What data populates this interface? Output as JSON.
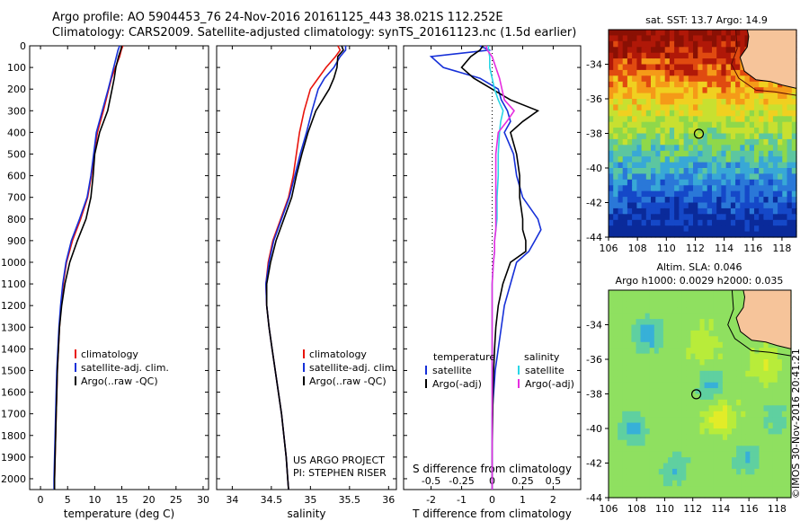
{
  "header": {
    "line1": "Argo profile: AO 5904453_76 24-Nov-2016 20161125_443 38.021S 112.252E",
    "line2": "Climatology: CARS2009. Satellite-adjusted climatology: synTS_20161123.nc (1.5d earlier)"
  },
  "stamp": "©IMOS 30-Nov-2016 20:41:21",
  "colors": {
    "climatology": "#e8140c",
    "satellite": "#1630d8",
    "argo": "#000000",
    "salinity_satellite": "#29d6e6",
    "salinity_argo": "#e62de0"
  },
  "chart_data": [
    {
      "type": "line",
      "xlabel": "temperature (deg C)",
      "ylabel": "",
      "xlim": [
        -2,
        31
      ],
      "ylim": [
        2050,
        0
      ],
      "xticks": [
        0,
        5,
        10,
        15,
        20,
        25,
        30
      ],
      "yticks": [
        0,
        100,
        200,
        300,
        400,
        500,
        600,
        700,
        800,
        900,
        1000,
        1100,
        1200,
        1300,
        1400,
        1500,
        1600,
        1700,
        1800,
        1900,
        2000
      ],
      "legend": [
        "climatology",
        "satellite-adj. clim.",
        "Argo(..raw -QC)"
      ],
      "y": [
        0,
        20,
        50,
        100,
        150,
        200,
        300,
        400,
        500,
        600,
        700,
        800,
        900,
        1000,
        1100,
        1200,
        1300,
        1400,
        1500,
        1600,
        1700,
        1800,
        1900,
        2000,
        2050
      ],
      "series": [
        {
          "name": "climatology",
          "values": [
            15.2,
            14.9,
            14.6,
            13.8,
            13.1,
            12.6,
            11.6,
            10.5,
            9.9,
            9.4,
            8.7,
            7.4,
            5.9,
            4.8,
            4.2,
            3.8,
            3.5,
            3.3,
            3.1,
            3.0,
            2.9,
            2.8,
            2.7,
            2.6,
            2.6
          ]
        },
        {
          "name": "satellite-adj. clim.",
          "values": [
            14.6,
            14.3,
            14.0,
            13.5,
            13.0,
            12.5,
            11.4,
            10.3,
            9.8,
            9.3,
            8.6,
            7.2,
            5.7,
            4.7,
            4.1,
            3.7,
            3.4,
            3.2,
            3.0,
            2.9,
            2.8,
            2.7,
            2.6,
            2.5,
            2.5
          ]
        },
        {
          "name": "Argo(..raw -QC)",
          "values": [
            15.0,
            14.8,
            14.4,
            13.9,
            13.6,
            13.2,
            12.4,
            10.9,
            10.0,
            9.7,
            9.3,
            8.4,
            6.8,
            5.4,
            4.5,
            3.9,
            3.5,
            3.3,
            3.1,
            3.0,
            2.9,
            2.8,
            2.7,
            2.6,
            2.6
          ]
        }
      ]
    },
    {
      "type": "line",
      "xlabel": "salinity",
      "xlim": [
        33.8,
        36.1
      ],
      "ylim": [
        2050,
        0
      ],
      "xticks": [
        34,
        34.5,
        35,
        35.5,
        36
      ],
      "xtick_labels": [
        "34",
        "34.5",
        "35",
        "35.5",
        "36"
      ],
      "legend": [
        "climatology",
        "satellite-adj. clim.",
        "Argo(..raw -QC)"
      ],
      "annotation": [
        "US ARGO PROJECT",
        "PI: STEPHEN RISER"
      ],
      "y": [
        0,
        20,
        50,
        100,
        150,
        200,
        300,
        400,
        500,
        600,
        700,
        800,
        900,
        1000,
        1100,
        1200,
        1300,
        1400,
        1500,
        1600,
        1700,
        1800,
        1900,
        2000,
        2050
      ],
      "series": [
        {
          "name": "climatology",
          "values": [
            35.35,
            35.38,
            35.32,
            35.2,
            35.1,
            35.0,
            34.92,
            34.86,
            34.82,
            34.78,
            34.72,
            34.62,
            34.52,
            34.46,
            34.43,
            34.44,
            34.47,
            34.51,
            34.55,
            34.59,
            34.63,
            34.66,
            34.69,
            34.71,
            34.72
          ]
        },
        {
          "name": "satellite-adj. clim.",
          "values": [
            35.45,
            35.45,
            35.38,
            35.3,
            35.18,
            35.1,
            35.02,
            34.95,
            34.87,
            34.8,
            34.73,
            34.63,
            34.53,
            34.47,
            34.43,
            34.44,
            34.47,
            34.51,
            34.55,
            34.59,
            34.63,
            34.66,
            34.69,
            34.71,
            34.72
          ]
        },
        {
          "name": "Argo(..raw -QC)",
          "values": [
            35.4,
            35.42,
            35.35,
            35.34,
            35.3,
            35.24,
            35.07,
            34.97,
            34.89,
            34.82,
            34.76,
            34.66,
            34.56,
            34.49,
            34.44,
            34.44,
            34.47,
            34.51,
            34.55,
            34.59,
            34.63,
            34.66,
            34.69,
            34.71,
            34.72
          ]
        }
      ]
    },
    {
      "type": "line",
      "xlabel": "T difference from climatology",
      "xlabel2": "S difference from climatology",
      "xlim": [
        -2.9,
        2.9
      ],
      "ylim": [
        2050,
        0
      ],
      "xticks": [
        -2,
        -1,
        0,
        1,
        2
      ],
      "xticks2": [
        -0.5,
        -0.25,
        0,
        0.25,
        0.5
      ],
      "xtick2_labels": [
        "-0.5",
        "-0.25",
        "0",
        "0.25",
        "0.5"
      ],
      "legend_headers": [
        "temperature",
        "salinity"
      ],
      "legend": [
        "satellite",
        "Argo(-adj)",
        "satellite",
        "Argo(-adj)"
      ],
      "y": [
        0,
        20,
        50,
        100,
        150,
        200,
        250,
        300,
        350,
        400,
        500,
        600,
        700,
        800,
        850,
        900,
        950,
        1000,
        1100,
        1200,
        1300,
        1400,
        1500,
        1600,
        1700,
        1800,
        1900,
        2000,
        2050
      ],
      "series": [
        {
          "name": "satellite",
          "values": [
            -0.4,
            -0.1,
            -2.0,
            -1.6,
            -0.4,
            0.2,
            0.3,
            0.5,
            0.6,
            0.4,
            0.7,
            0.8,
            1.0,
            1.5,
            1.6,
            1.4,
            1.2,
            0.8,
            0.6,
            0.4,
            0.3,
            0.2,
            0.1,
            0.05,
            0.0,
            0.0,
            0.0,
            0.0,
            0.0
          ]
        },
        {
          "name": "Argo(-adj)",
          "values": [
            -0.3,
            -0.4,
            -0.7,
            -1.0,
            -0.6,
            0.0,
            0.6,
            1.5,
            1.0,
            0.6,
            0.8,
            0.9,
            0.9,
            1.0,
            1.0,
            1.1,
            1.1,
            0.6,
            0.35,
            0.2,
            0.12,
            0.08,
            0.05,
            0.03,
            0.02,
            0.01,
            0.0,
            0.0,
            0.0
          ]
        },
        {
          "name": "satellite",
          "values": [
            -0.03,
            -0.03,
            -0.02,
            -0.02,
            0.0,
            0.02,
            0.05,
            0.09,
            0.07,
            0.06,
            0.05,
            0.05,
            0.04,
            0.04,
            0.03,
            0.02,
            0.02,
            0.01,
            0.0,
            0.0,
            0.0,
            0.0,
            0.0,
            0.0,
            0.0,
            0.0,
            0.0,
            0.0,
            0.0
          ]
        },
        {
          "name": "Argo(-adj)",
          "values": [
            -0.05,
            -0.04,
            0.0,
            0.03,
            0.06,
            0.08,
            0.1,
            0.18,
            0.12,
            0.05,
            0.03,
            0.03,
            0.03,
            0.03,
            0.03,
            0.02,
            0.02,
            0.01,
            0.0,
            0.0,
            0.0,
            0.0,
            0.0,
            0.0,
            0.0,
            0.0,
            0.0,
            0.0,
            0.0
          ]
        }
      ]
    },
    {
      "type": "heatmap",
      "title": "sat. SST: 13.7  Argo: 14.9",
      "xlim": [
        106,
        119
      ],
      "ylim": [
        -44,
        -32
      ],
      "xticks": [
        106,
        108,
        110,
        112,
        114,
        116,
        118
      ],
      "yticks": [
        -34,
        -36,
        -38,
        -40,
        -42,
        -44
      ],
      "argo_position": [
        112.25,
        -38.02
      ]
    },
    {
      "type": "heatmap",
      "title": "Altim. SLA: 0.046",
      "subtitle": "Argo h1000: 0.0029  h2000: 0.035",
      "xlim": [
        106,
        119
      ],
      "ylim": [
        -44,
        -32
      ],
      "xticks": [
        106,
        108,
        110,
        112,
        114,
        116,
        118
      ],
      "yticks": [
        -34,
        -36,
        -38,
        -40,
        -42,
        -44
      ],
      "argo_position": [
        112.25,
        -38.02
      ]
    }
  ]
}
